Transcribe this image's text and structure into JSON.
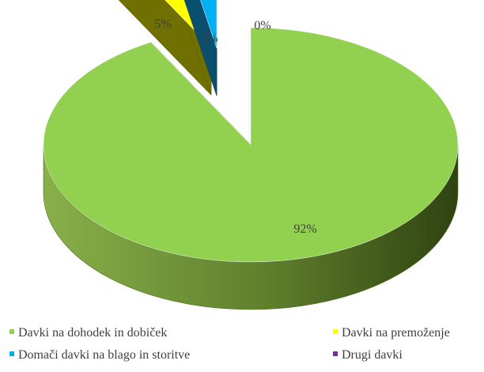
{
  "chart_data": {
    "type": "pie",
    "style": "3d-exploded",
    "categories": [
      "Davki na dohodek in dobiček",
      "Davki na premoženje",
      "Domači davki na blago in storitve",
      "Drugi davki"
    ],
    "values": [
      92,
      5,
      3,
      0
    ],
    "data_labels": [
      "92%",
      "5%",
      "3%",
      "0%"
    ],
    "colors": [
      "#92d050",
      "#ffff00",
      "#00b0f0",
      "#7030a0"
    ],
    "legend": "bottom"
  }
}
